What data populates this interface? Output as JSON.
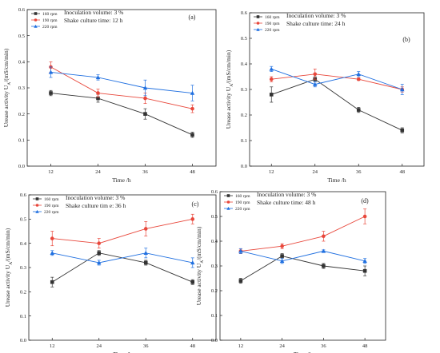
{
  "chart_data": [
    {
      "type": "line",
      "panel_label": "(a)",
      "annotation": [
        "Inoculation volume: 3 %",
        "Shake culture time: 12 h"
      ],
      "xlabel": "Time /h",
      "ylabel": "Urease activity U",
      "ylabel_sub": "A",
      "ylabel_unit": "/(mS/cm/min)",
      "x": [
        12,
        24,
        36,
        48
      ],
      "xlim": [
        6,
        54
      ],
      "ylim": [
        0.0,
        0.6
      ],
      "yticks": [
        "0.0",
        "0.1",
        "0.2",
        "0.3",
        "0.4",
        "0.5",
        "0.6"
      ],
      "legend_position": "top-left",
      "series": [
        {
          "name": "160 rpm",
          "color": "#333333",
          "marker": "square",
          "values": [
            0.28,
            0.26,
            0.2,
            0.12
          ],
          "errors": [
            0.01,
            0.015,
            0.02,
            0.01
          ]
        },
        {
          "name": "190 rpm",
          "color": "#e8473b",
          "marker": "circle",
          "values": [
            0.38,
            0.28,
            0.26,
            0.22
          ],
          "errors": [
            0.02,
            0.015,
            0.02,
            0.015
          ]
        },
        {
          "name": "220 rpm",
          "color": "#1f6fe0",
          "marker": "triangle",
          "values": [
            0.36,
            0.34,
            0.3,
            0.28
          ],
          "errors": [
            0.02,
            0.01,
            0.03,
            0.03
          ]
        }
      ]
    },
    {
      "type": "line",
      "panel_label": "(b)",
      "annotation": [
        "Inoculation volume: 3 %",
        "Shake culture time: 24 h"
      ],
      "xlabel": "Time /h",
      "ylabel": "Urease activity U",
      "ylabel_sub": "A",
      "ylabel_unit": "/(mS/cm/min)",
      "x": [
        12,
        24,
        36,
        48
      ],
      "xlim": [
        6,
        54
      ],
      "ylim": [
        0.0,
        0.6
      ],
      "yticks": [
        "0.0",
        "0.1",
        "0.2",
        "0.3",
        "0.4",
        "0.5",
        "0.6"
      ],
      "legend_position": "top-left",
      "series": [
        {
          "name": "160 rpm",
          "color": "#333333",
          "marker": "square",
          "values": [
            0.28,
            0.34,
            0.22,
            0.14
          ],
          "errors": [
            0.03,
            0.01,
            0.01,
            0.01
          ]
        },
        {
          "name": "190 rpm",
          "color": "#e8473b",
          "marker": "circle",
          "values": [
            0.34,
            0.36,
            0.34,
            0.3
          ],
          "errors": [
            0.01,
            0.02,
            0.005,
            0.01
          ]
        },
        {
          "name": "220 rpm",
          "color": "#1f6fe0",
          "marker": "triangle",
          "values": [
            0.38,
            0.32,
            0.36,
            0.3
          ],
          "errors": [
            0.01,
            0.01,
            0.01,
            0.02
          ]
        }
      ]
    },
    {
      "type": "line",
      "panel_label": "(c)",
      "annotation": [
        "Inoculation volume: 3 %",
        "Shake culture tim e: 36 h"
      ],
      "xlabel": "Time /h",
      "ylabel": "Urease activity U",
      "ylabel_sub": "A",
      "ylabel_unit": "/(mS/cm/min)",
      "x": [
        12,
        24,
        36,
        48
      ],
      "xlim": [
        6,
        54
      ],
      "ylim": [
        0.0,
        0.6
      ],
      "yticks": [
        "0.0",
        "0.1",
        "0.2",
        "0.3",
        "0.4",
        "0.5",
        "0.6"
      ],
      "legend_position": "top-left",
      "series": [
        {
          "name": "160 rpm",
          "color": "#333333",
          "marker": "square",
          "values": [
            0.24,
            0.36,
            0.32,
            0.24
          ],
          "errors": [
            0.02,
            0.01,
            0.01,
            0.01
          ]
        },
        {
          "name": "190 rpm",
          "color": "#e8473b",
          "marker": "circle",
          "values": [
            0.42,
            0.4,
            0.46,
            0.5
          ],
          "errors": [
            0.03,
            0.02,
            0.03,
            0.02
          ]
        },
        {
          "name": "220 rpm",
          "color": "#1f6fe0",
          "marker": "triangle",
          "values": [
            0.36,
            0.32,
            0.36,
            0.32
          ],
          "errors": [
            0.01,
            0.01,
            0.02,
            0.02
          ]
        }
      ]
    },
    {
      "type": "line",
      "panel_label": "(d)",
      "annotation": [
        "Inoculation volume: 3 %",
        "Shake culture time: 48 h"
      ],
      "xlabel": "Time /h",
      "ylabel": "Urease activity U",
      "ylabel_sub": "A",
      "ylabel_unit": "/(mS/cm/min)",
      "x": [
        12,
        24,
        36,
        48
      ],
      "xlim": [
        6,
        54
      ],
      "ylim": [
        0.0,
        0.6
      ],
      "yticks": [
        "0.0",
        "0.1",
        "0.2",
        "0.3",
        "0.4",
        "0.5",
        "0.6"
      ],
      "legend_position": "top-left",
      "series": [
        {
          "name": "160 rpm",
          "color": "#333333",
          "marker": "square",
          "values": [
            0.24,
            0.34,
            0.3,
            0.28
          ],
          "errors": [
            0.01,
            0.01,
            0.01,
            0.02
          ]
        },
        {
          "name": "190 rpm",
          "color": "#e8473b",
          "marker": "circle",
          "values": [
            0.36,
            0.38,
            0.42,
            0.5
          ],
          "errors": [
            0.01,
            0.01,
            0.02,
            0.03
          ]
        },
        {
          "name": "220 rpm",
          "color": "#1f6fe0",
          "marker": "triangle",
          "values": [
            0.36,
            0.32,
            0.36,
            0.32
          ],
          "errors": [
            0.01,
            0.01,
            0.005,
            0.01
          ]
        }
      ]
    }
  ]
}
